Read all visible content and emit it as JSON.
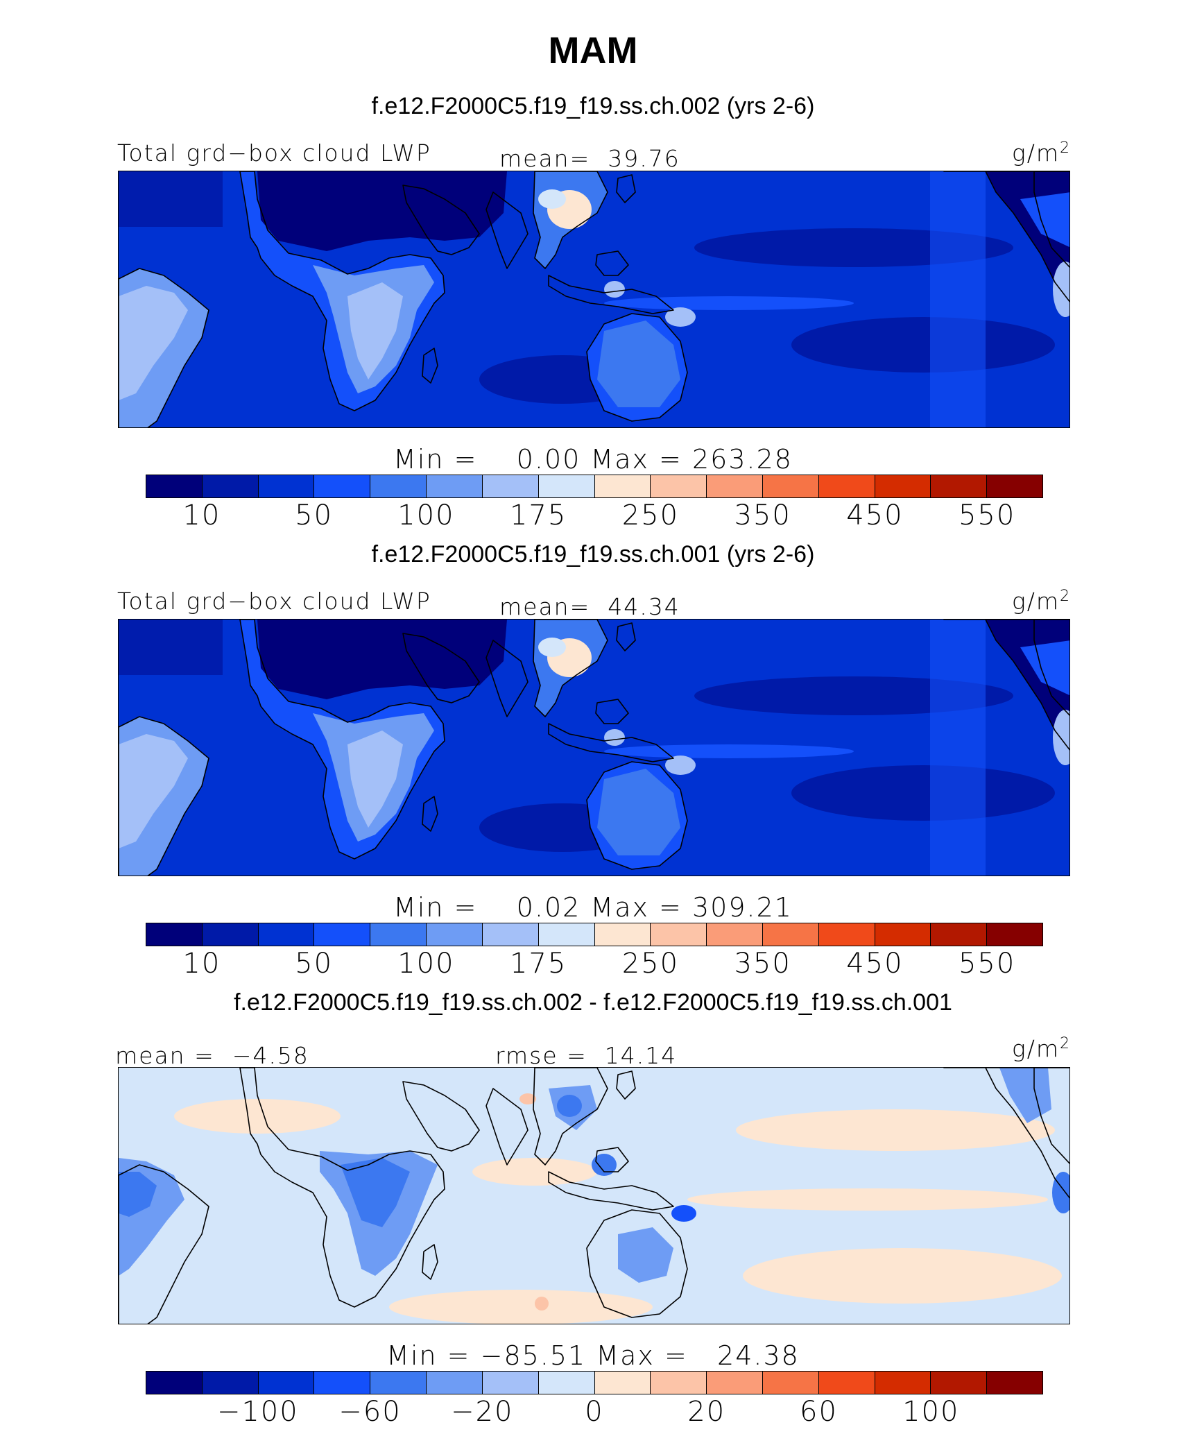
{
  "title": "MAM",
  "colors": [
    "#00007a",
    "#001aa8",
    "#0032d2",
    "#1450fa",
    "#3c78f0",
    "#6e9cf4",
    "#a4c0f8",
    "#d4e6fa",
    "#fde6d2",
    "#fcc4a8",
    "#fa9c78",
    "#f67446",
    "#f04a1a",
    "#d42c00",
    "#b21800",
    "#860000"
  ],
  "panels": [
    {
      "title": "f.e12.F2000C5.f19_f19.ss.ch.002 (yrs 2-6)",
      "left_label": "Total grd−box cloud LWP",
      "center_label": "mean=  39.76",
      "unit_base": "g/m",
      "unit_exp": "2",
      "minmax": "Min =    0.00 Max = 263.28",
      "colorbar_labels": [
        "10",
        "50",
        "100",
        "175",
        "250",
        "350",
        "450",
        "550"
      ],
      "colorbar_label_boxes": [
        1,
        3,
        5,
        7,
        9,
        11,
        13,
        15
      ],
      "background_level": 2
    },
    {
      "title": "f.e12.F2000C5.f19_f19.ss.ch.001 (yrs 2-6)",
      "left_label": "Total grd−box cloud LWP",
      "center_label": "mean=  44.34",
      "unit_base": "g/m",
      "unit_exp": "2",
      "minmax": "Min =    0.02 Max = 309.21",
      "colorbar_labels": [
        "10",
        "50",
        "100",
        "175",
        "250",
        "350",
        "450",
        "550"
      ],
      "colorbar_label_boxes": [
        1,
        3,
        5,
        7,
        9,
        11,
        13,
        15
      ],
      "background_level": 2
    },
    {
      "title": "f.e12.F2000C5.f19_f19.ss.ch.002 - f.e12.F2000C5.f19_f19.ss.ch.001",
      "left_label": "mean =  −4.58",
      "center_label": "rmse =  14.14",
      "unit_base": "g/m",
      "unit_exp": "2",
      "minmax": "Min = −85.51 Max =   24.38",
      "colorbar_labels": [
        "−100",
        "−60",
        "−20",
        "0",
        "20",
        "60",
        "100"
      ],
      "colorbar_label_boxes": [
        2,
        4,
        6,
        8,
        10,
        12,
        14
      ],
      "background_level": 7
    }
  ]
}
